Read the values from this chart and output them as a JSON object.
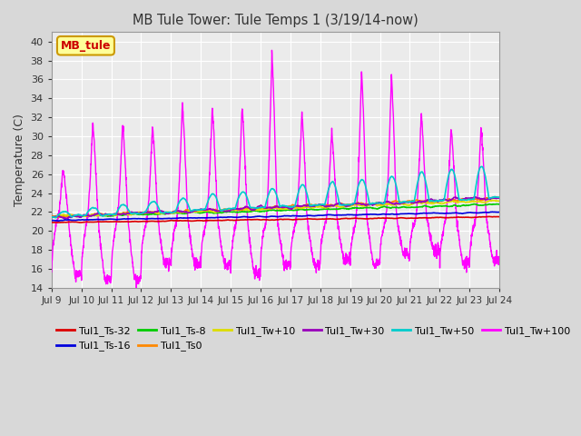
{
  "title": "MB Tule Tower: Tule Temps 1 (3/19/14-now)",
  "ylabel": "Temperature (C)",
  "ylim": [
    14,
    41
  ],
  "yticks": [
    14,
    16,
    18,
    20,
    22,
    24,
    26,
    28,
    30,
    32,
    34,
    36,
    38,
    40
  ],
  "x_labels": [
    "Jul 9",
    "Jul 10",
    "Jul 11",
    "Jul 12",
    "Jul 13",
    "Jul 14",
    "Jul 15",
    "Jul 16",
    "Jul 17",
    "Jul 18",
    "Jul 19",
    "Jul 20",
    "Jul 21",
    "Jul 22",
    "Jul 23",
    "Jul 24"
  ],
  "legend_box_label": "MB_tule",
  "legend_box_color": "#ffff99",
  "legend_box_border": "#cc9900",
  "plot_bg": "#ebebeb",
  "fig_bg": "#d8d8d8",
  "grid_color": "#ffffff",
  "series": [
    {
      "label": "Tul1_Ts-32",
      "color": "#dd0000",
      "lw": 1.2,
      "zorder": 5
    },
    {
      "label": "Tul1_Ts-16",
      "color": "#0000dd",
      "lw": 1.2,
      "zorder": 5
    },
    {
      "label": "Tul1_Ts-8",
      "color": "#00cc00",
      "lw": 1.2,
      "zorder": 4
    },
    {
      "label": "Tul1_Ts0",
      "color": "#ff8800",
      "lw": 1.2,
      "zorder": 4
    },
    {
      "label": "Tul1_Tw+10",
      "color": "#dddd00",
      "lw": 1.2,
      "zorder": 4
    },
    {
      "label": "Tul1_Tw+30",
      "color": "#9900bb",
      "lw": 1.2,
      "zorder": 4
    },
    {
      "label": "Tul1_Tw+50",
      "color": "#00cccc",
      "lw": 1.2,
      "zorder": 4
    },
    {
      "label": "Tul1_Tw+100",
      "color": "#ff00ff",
      "lw": 1.0,
      "zorder": 3
    }
  ]
}
